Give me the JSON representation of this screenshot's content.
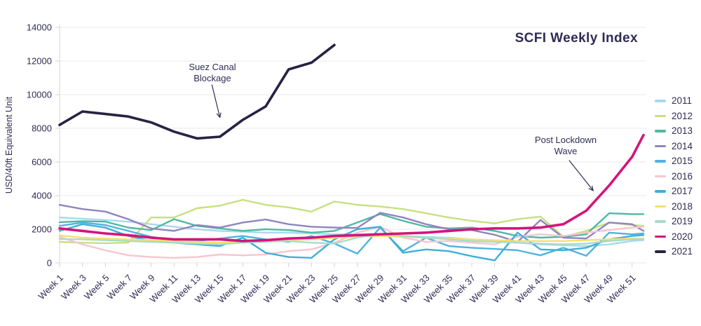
{
  "chart_data": {
    "type": "line",
    "title": "SCFI Weekly Index",
    "xlabel": "",
    "ylabel": "USD/40ft Equivalent Unit",
    "ylim": [
      0,
      14000
    ],
    "ytick_step": 2000,
    "grid": "horizontal",
    "legend_position": "right",
    "x_tick_labels": [
      "Week 1",
      "Week 3",
      "Week 5",
      "Week 7",
      "Week 9",
      "Week 11",
      "Week 13",
      "Week 15",
      "Week 17",
      "Week 19",
      "Week 21",
      "Week 23",
      "Week 25",
      "Week 27",
      "Week 29",
      "Week 31",
      "Week 33",
      "Week 35",
      "Week 37",
      "Week 39",
      "Week 41",
      "Week 43",
      "Week 45",
      "Week 47",
      "Week 49",
      "Week 51"
    ],
    "weeks": [
      1,
      3,
      5,
      7,
      9,
      11,
      13,
      15,
      17,
      19,
      21,
      23,
      25,
      27,
      29,
      31,
      33,
      35,
      37,
      39,
      41,
      43,
      45,
      47,
      49,
      51,
      52
    ],
    "series": [
      {
        "name": "2011",
        "color": "#aad8ee",
        "emphasis": false,
        "values": [
          2700,
          2620,
          2550,
          2450,
          2300,
          2150,
          2000,
          1900,
          1850,
          1800,
          1800,
          1750,
          1700,
          1700,
          1650,
          1600,
          1550,
          1500,
          1400,
          1300,
          1200,
          1100,
          1050,
          1000,
          1100,
          1300,
          1350
        ]
      },
      {
        "name": "2012",
        "color": "#c5e17f",
        "emphasis": false,
        "values": [
          1250,
          1200,
          1170,
          1200,
          2700,
          2700,
          3250,
          3400,
          3750,
          3450,
          3300,
          3050,
          3650,
          3450,
          3350,
          3200,
          2950,
          2700,
          2500,
          2350,
          2600,
          2750,
          1550,
          1900,
          2400,
          2250,
          2200
        ]
      },
      {
        "name": "2013",
        "color": "#4db9a3",
        "emphasis": false,
        "values": [
          2420,
          2480,
          2450,
          2100,
          1950,
          2600,
          2200,
          2050,
          1900,
          2000,
          1950,
          1800,
          1900,
          2400,
          2900,
          2500,
          2150,
          2050,
          2100,
          1900,
          1600,
          1500,
          1550,
          1700,
          2950,
          2900,
          2900
        ]
      },
      {
        "name": "2014",
        "color": "#9184c0",
        "emphasis": false,
        "values": [
          3450,
          3200,
          3050,
          2600,
          2050,
          1900,
          2250,
          2100,
          2400,
          2580,
          2300,
          2150,
          2100,
          2080,
          2980,
          2700,
          2300,
          2000,
          1950,
          1670,
          1250,
          2550,
          1500,
          1450,
          2400,
          2300,
          1900
        ]
      },
      {
        "name": "2015",
        "color": "#4fb3e0",
        "emphasis": false,
        "values": [
          2200,
          2400,
          2250,
          1900,
          1550,
          1350,
          1300,
          1450,
          1600,
          1400,
          1250,
          1600,
          1150,
          550,
          2100,
          700,
          1500,
          1000,
          900,
          830,
          750,
          450,
          900,
          420,
          1800,
          1700,
          1750
        ]
      },
      {
        "name": "2016",
        "color": "#f7c5d0",
        "emphasis": false,
        "values": [
          1550,
          1100,
          750,
          450,
          350,
          300,
          350,
          500,
          450,
          500,
          700,
          800,
          1200,
          1800,
          2150,
          1500,
          1250,
          1300,
          1200,
          1100,
          1550,
          1700,
          1600,
          1800,
          1950,
          2100,
          2150
        ]
      },
      {
        "name": "2017",
        "color": "#3fafd9",
        "emphasis": false,
        "values": [
          1900,
          2300,
          2100,
          1600,
          1300,
          1200,
          1100,
          1000,
          1500,
          600,
          350,
          300,
          1400,
          2000,
          2150,
          600,
          800,
          700,
          400,
          150,
          1800,
          800,
          750,
          900,
          1400,
          1600,
          1650
        ]
      },
      {
        "name": "2018",
        "color": "#f8df70",
        "emphasis": false,
        "values": [
          1630,
          1500,
          1450,
          1400,
          1350,
          1300,
          1250,
          1200,
          1250,
          1300,
          1350,
          1400,
          1500,
          1550,
          1600,
          1550,
          1500,
          1450,
          1400,
          1350,
          1300,
          1300,
          1300,
          1350,
          1400,
          1450,
          1450
        ]
      },
      {
        "name": "2019",
        "color": "#a7dcc8",
        "emphasis": false,
        "values": [
          1420,
          1400,
          1350,
          1300,
          1250,
          1200,
          1150,
          1100,
          1200,
          1250,
          1300,
          1200,
          1150,
          1500,
          1700,
          1600,
          1500,
          1400,
          1300,
          1250,
          1200,
          1150,
          1100,
          1150,
          1300,
          1400,
          1400
        ]
      },
      {
        "name": "2020",
        "color": "#d4147c",
        "emphasis": true,
        "values": [
          2050,
          1900,
          1750,
          1650,
          1500,
          1400,
          1400,
          1400,
          1300,
          1350,
          1450,
          1500,
          1600,
          1650,
          1700,
          1750,
          1800,
          1900,
          2000,
          2050,
          2050,
          2100,
          2300,
          3100,
          4600,
          6300,
          7600
        ]
      },
      {
        "name": "2021",
        "color": "#262342",
        "emphasis": true,
        "values": [
          8200,
          9000,
          8850,
          8700,
          8350,
          7800,
          7400,
          7500,
          8500,
          9300,
          11500,
          11900,
          12950,
          null,
          null,
          null,
          null,
          null,
          null,
          null,
          null,
          null,
          null,
          null,
          null,
          null,
          null
        ]
      }
    ],
    "annotations": [
      {
        "id": "suez",
        "line1": "Suez Canal",
        "line2": "Blockage",
        "arrow": {
          "tail_week": 14.3,
          "tail_value": 10600,
          "tip_week": 15.0,
          "tip_value": 8650
        }
      },
      {
        "id": "lockdown",
        "line1": "Post Lockdown",
        "line2": "Wave",
        "arrow": {
          "tail_week": 45.5,
          "tail_value": 6100,
          "tip_week": 47.6,
          "tip_value": 4300
        }
      }
    ]
  }
}
